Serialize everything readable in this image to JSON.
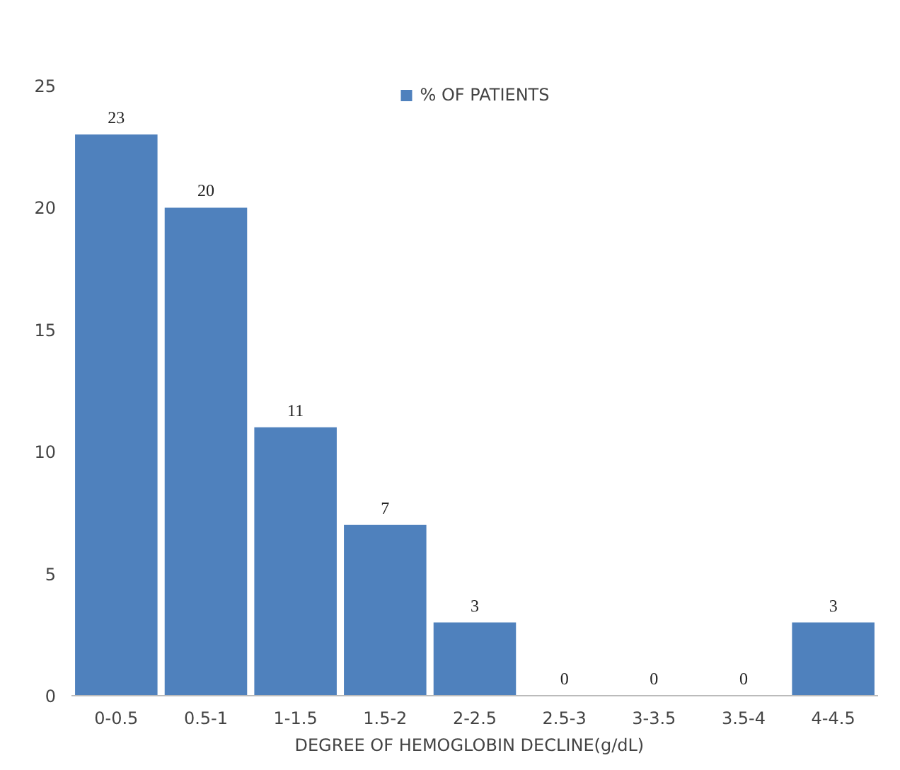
{
  "chart_data": {
    "type": "bar",
    "xlabel": "DEGREE  OF HEMOGLOBIN  DECLINE(g/dL)",
    "categories": [
      "0-0.5",
      "0.5-1",
      "1-1.5",
      "1.5-2",
      "2-2.5",
      "2.5-3",
      "3-3.5",
      "3.5-4",
      "4-4.5"
    ],
    "series": [
      {
        "name": "% OF PATIENTS",
        "color": "#4f81bd",
        "values": [
          23,
          20,
          11,
          7,
          3,
          0,
          0,
          0,
          3
        ]
      }
    ],
    "ylim": [
      0,
      25
    ],
    "yticks": [
      0,
      5,
      10,
      15,
      20,
      25
    ],
    "data_labels": true,
    "legend": "top",
    "grid": false
  }
}
